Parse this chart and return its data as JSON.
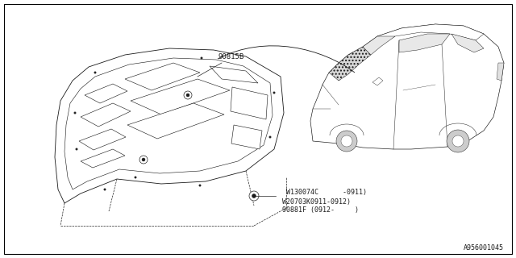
{
  "bg_color": "#ffffff",
  "border_color": "#000000",
  "diagram_color": "#1a1a1a",
  "part_label_1": "90815B",
  "part_label_2": "W130074C      -0911)",
  "part_label_3": "W20703K0911-0912)",
  "part_label_4": "90881F (0912-     )",
  "footer_text": "A956001045",
  "font_size_parts": 6.5,
  "font_size_footer": 6.0,
  "line_color": "#1a1a1a",
  "line_width": 0.6
}
